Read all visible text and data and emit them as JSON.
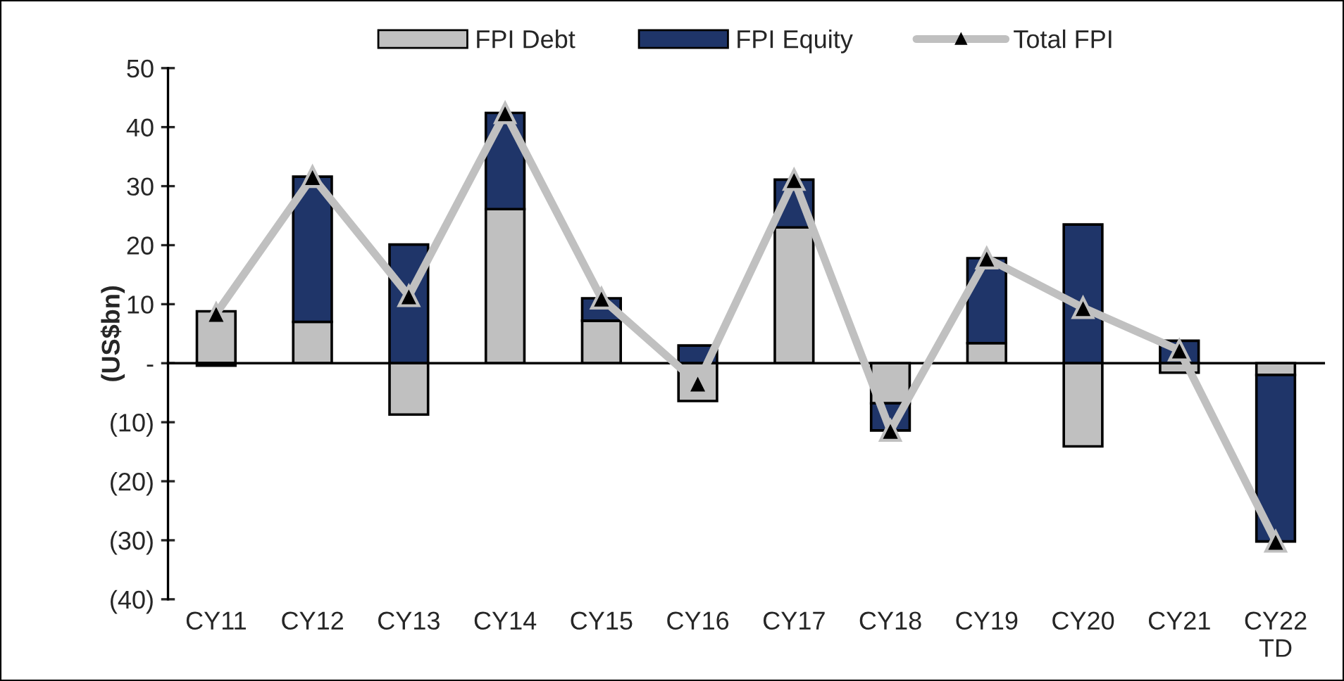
{
  "chart_data": {
    "type": "bar",
    "stacked": true,
    "ylabel": "(US$bn)",
    "categories": [
      "CY11",
      "CY12",
      "CY13",
      "CY14",
      "CY15",
      "CY16",
      "CY17",
      "CY18",
      "CY19",
      "CY20",
      "CY21",
      "CY22\nTD"
    ],
    "series": [
      {
        "name": "FPI Debt",
        "color": "#c0c0c0",
        "values": [
          8.8,
          7.0,
          -8.7,
          26.1,
          7.2,
          -6.4,
          23.0,
          -6.8,
          3.4,
          -14.1,
          -1.6,
          -2.0
        ]
      },
      {
        "name": "FPI Equity",
        "color": "#1f3569",
        "values": [
          -0.4,
          24.6,
          20.1,
          16.3,
          3.8,
          3.0,
          8.1,
          -4.6,
          14.4,
          23.5,
          3.8,
          -28.2
        ]
      },
      {
        "name": "Total FPI",
        "type": "line",
        "color": "#c0c0c0",
        "marker": "triangle",
        "values": [
          8.4,
          31.6,
          11.4,
          42.4,
          11.0,
          -3.4,
          31.1,
          -11.4,
          17.8,
          9.4,
          2.2,
          -30.2
        ]
      }
    ],
    "ylim": [
      -40,
      50
    ],
    "yticks": [
      {
        "value": -40,
        "label": "(40)"
      },
      {
        "value": -30,
        "label": "(30)"
      },
      {
        "value": -20,
        "label": "(20)"
      },
      {
        "value": -10,
        "label": "(10)"
      },
      {
        "value": 0,
        "label": "-"
      },
      10,
      20,
      30,
      40,
      50
    ],
    "legend": "top"
  }
}
